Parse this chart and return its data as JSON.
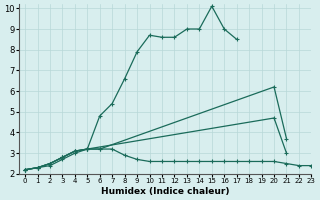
{
  "xlabel": "Humidex (Indice chaleur)",
  "xlim": [
    -0.5,
    23
  ],
  "ylim": [
    2,
    10.2
  ],
  "xticks": [
    0,
    1,
    2,
    3,
    4,
    5,
    6,
    7,
    8,
    9,
    10,
    11,
    12,
    13,
    14,
    15,
    16,
    17,
    18,
    19,
    20,
    21,
    22,
    23
  ],
  "yticks": [
    2,
    3,
    4,
    5,
    6,
    7,
    8,
    9,
    10
  ],
  "bg_color": "#d8eeee",
  "grid_color": "#b8d8d8",
  "line_color": "#1a6b5a",
  "series": [
    {
      "x": [
        0,
        1,
        2,
        3,
        4,
        5,
        6,
        7,
        8,
        9,
        10,
        11,
        12,
        13,
        14,
        15,
        16,
        17,
        18,
        19,
        20,
        21,
        22,
        23
      ],
      "y": [
        2.2,
        2.3,
        2.5,
        2.8,
        3.1,
        3.2,
        4.8,
        5.4,
        6.6,
        7.9,
        8.7,
        8.6,
        8.6,
        9.0,
        9.0,
        10.1,
        9.0,
        8.5,
        null,
        null,
        null,
        null,
        null,
        null
      ]
    },
    {
      "x": [
        0,
        1,
        2,
        3,
        4,
        5,
        6,
        7,
        8,
        9,
        10,
        11,
        12,
        13,
        14,
        15,
        16,
        17,
        18,
        19,
        20,
        21,
        22,
        23
      ],
      "y": [
        2.2,
        2.3,
        2.5,
        2.8,
        3.1,
        3.2,
        3.2,
        null,
        null,
        null,
        null,
        null,
        null,
        null,
        null,
        null,
        null,
        null,
        null,
        null,
        6.2,
        3.7,
        null,
        null
      ]
    },
    {
      "x": [
        0,
        1,
        2,
        3,
        4,
        5,
        6,
        7,
        8,
        9,
        10,
        11,
        12,
        13,
        14,
        15,
        16,
        17,
        18,
        19,
        20,
        21,
        22,
        23
      ],
      "y": [
        2.2,
        2.3,
        2.5,
        2.8,
        3.1,
        3.2,
        null,
        null,
        null,
        null,
        null,
        null,
        null,
        null,
        null,
        null,
        null,
        null,
        null,
        null,
        4.7,
        3.0,
        null,
        null
      ]
    },
    {
      "x": [
        0,
        1,
        2,
        3,
        4,
        5,
        6,
        7,
        8,
        9,
        10,
        11,
        12,
        13,
        14,
        15,
        16,
        17,
        18,
        19,
        20,
        21,
        22,
        23
      ],
      "y": [
        2.2,
        2.3,
        2.4,
        2.7,
        3.0,
        3.2,
        3.2,
        3.2,
        2.9,
        2.7,
        2.6,
        2.6,
        2.6,
        2.6,
        2.6,
        2.6,
        2.6,
        2.6,
        2.6,
        2.6,
        2.6,
        2.5,
        2.4,
        2.4
      ]
    }
  ]
}
